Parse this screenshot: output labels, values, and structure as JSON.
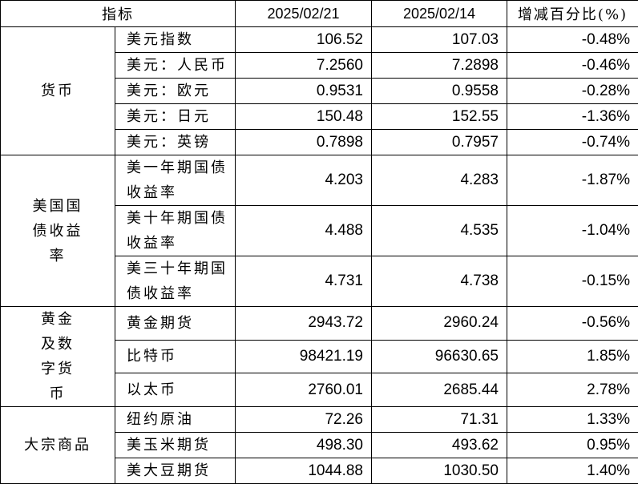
{
  "header": [
    "指标",
    "2025/02/21",
    "2025/02/14",
    "增减百分比(%)"
  ],
  "groups": [
    {
      "category": "货币",
      "rows": [
        {
          "name": "美元指数",
          "v1": "106.52",
          "v2": "107.03",
          "chg": "-0.48%"
        },
        {
          "name": "美元：人民币",
          "v1": "7.2560",
          "v2": "7.2898",
          "chg": "-0.46%"
        },
        {
          "name": "美元：欧元",
          "v1": "0.9531",
          "v2": "0.9558",
          "chg": "-0.28%"
        },
        {
          "name": "美元：日元",
          "v1": "150.48",
          "v2": "152.55",
          "chg": "-1.36%"
        },
        {
          "name": "美元：英镑",
          "v1": "0.7898",
          "v2": "0.7957",
          "chg": "-0.74%"
        }
      ]
    },
    {
      "category": "美国国债收益率",
      "tall": true,
      "rows": [
        {
          "name": "美一年期国债收益率",
          "v1": "4.203",
          "v2": "4.283",
          "chg": "-1.87%"
        },
        {
          "name": "美十年期国债收益率",
          "v1": "4.488",
          "v2": "4.535",
          "chg": "-1.04%"
        },
        {
          "name": "美三十年期国债收益率",
          "v1": "4.731",
          "v2": "4.738",
          "chg": "-0.15%"
        }
      ]
    },
    {
      "category": "黄金及数字货币",
      "rows": [
        {
          "name": "黄金期货",
          "v1": "2943.72",
          "v2": "2960.24",
          "chg": "-0.56%"
        },
        {
          "name": "比特币",
          "v1": "98421.19",
          "v2": "96630.65",
          "chg": "1.85%"
        },
        {
          "name": "以太币",
          "v1": "2760.01",
          "v2": "2685.44",
          "chg": "2.78%"
        }
      ]
    },
    {
      "category": "大宗商品",
      "rows": [
        {
          "name": "纽约原油",
          "v1": "72.26",
          "v2": "71.31",
          "chg": "1.33%"
        },
        {
          "name": "美玉米期货",
          "v1": "498.30",
          "v2": "493.62",
          "chg": "0.95%"
        },
        {
          "name": "美大豆期货",
          "v1": "1044.88",
          "v2": "1030.50",
          "chg": "1.40%"
        }
      ]
    }
  ]
}
